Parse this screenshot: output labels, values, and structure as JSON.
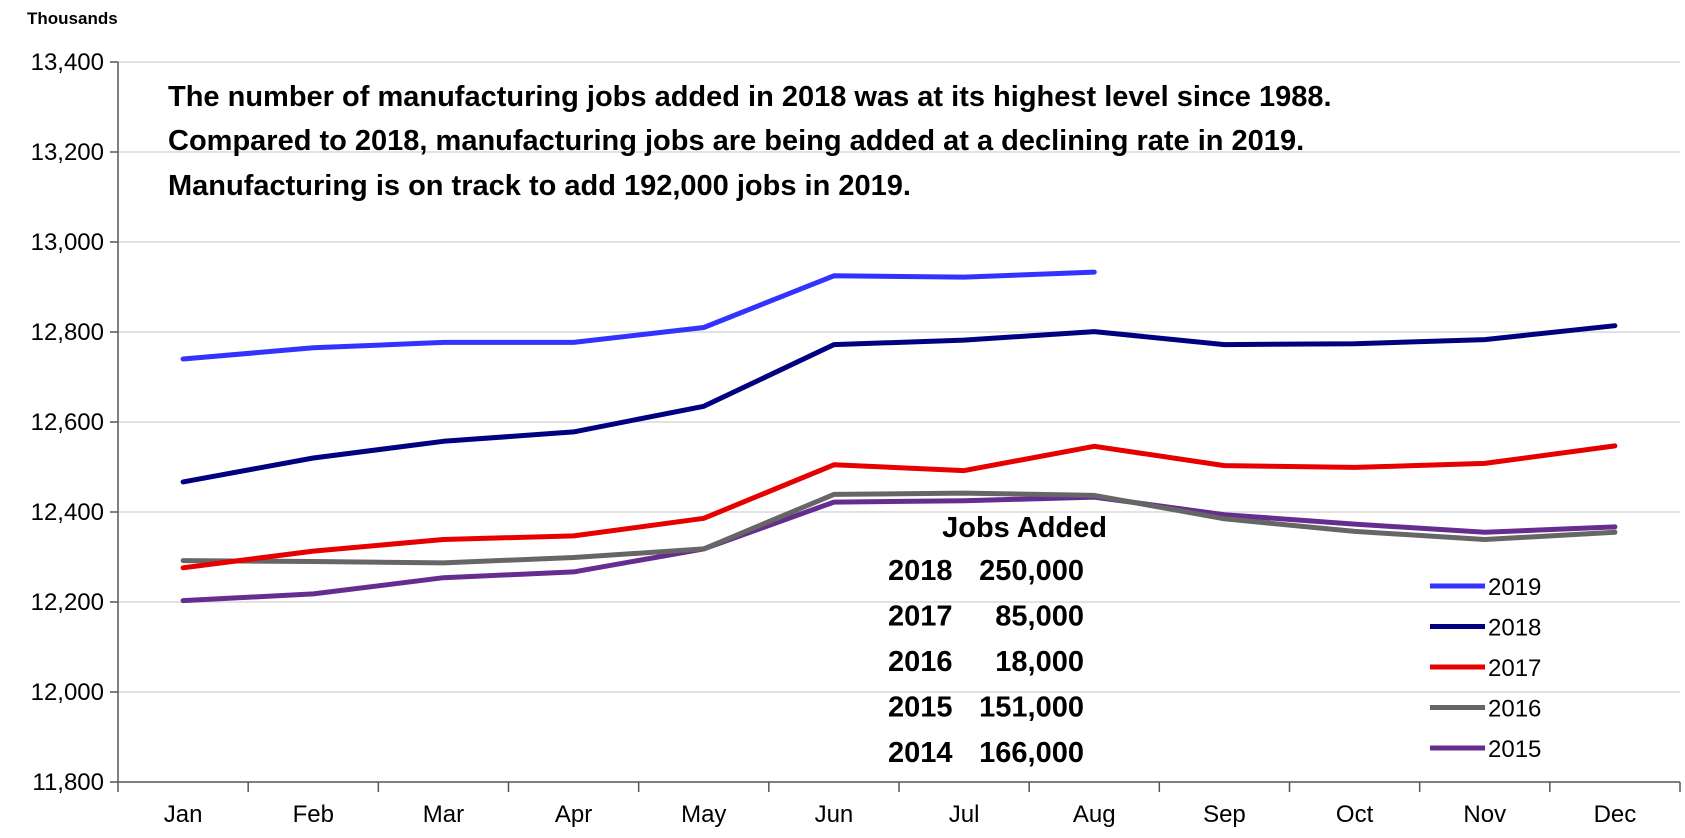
{
  "chart_data": {
    "type": "line",
    "unit_label": "Thousands",
    "categories": [
      "Jan",
      "Feb",
      "Mar",
      "Apr",
      "May",
      "Jun",
      "Jul",
      "Aug",
      "Sep",
      "Oct",
      "Nov",
      "Dec"
    ],
    "ylim": [
      11800,
      13400
    ],
    "yticks": [
      11800,
      12000,
      12200,
      12400,
      12600,
      12800,
      13000,
      13200,
      13400
    ],
    "ytick_labels": [
      "11,800",
      "12,000",
      "12,200",
      "12,400",
      "12,600",
      "12,800",
      "13,000",
      "13,200",
      "13,400"
    ],
    "grid": true,
    "legend_position": "bottom-right",
    "series": [
      {
        "name": "2019",
        "color": "#3333ff",
        "values": [
          12740,
          12765,
          12777,
          12777,
          12810,
          12925,
          12922,
          12933,
          null,
          null,
          null,
          null
        ]
      },
      {
        "name": "2018",
        "color": "#000080",
        "values": [
          12467,
          12520,
          12557,
          12578,
          12635,
          12772,
          12782,
          12801,
          12772,
          12774,
          12783,
          12814
        ]
      },
      {
        "name": "2017",
        "color": "#e60000",
        "values": [
          12276,
          12313,
          12339,
          12347,
          12386,
          12505,
          12492,
          12546,
          12503,
          12499,
          12508,
          12547
        ]
      },
      {
        "name": "2016",
        "color": "#666666",
        "values": [
          12292,
          12290,
          12287,
          12299,
          12318,
          12439,
          12442,
          12437,
          12385,
          12357,
          12339,
          12355
        ]
      },
      {
        "name": "2015",
        "color": "#662d91",
        "values": [
          12203,
          12218,
          12254,
          12267,
          12318,
          12422,
          12425,
          12433,
          12394,
          12373,
          12355,
          12367
        ]
      }
    ],
    "annotation_lines": [
      "The number of manufacturing jobs added in 2018 was at its highest level since 1988.",
      "Compared to 2018, manufacturing jobs are being added at a declining rate in 2019.",
      "Manufacturing is on track to add 192,000 jobs in 2019."
    ],
    "jobs_table": {
      "title": "Jobs Added",
      "rows": [
        {
          "year": "2018",
          "value": "250,000"
        },
        {
          "year": "2017",
          "value": "85,000"
        },
        {
          "year": "2016",
          "value": "18,000"
        },
        {
          "year": "2015",
          "value": "151,000"
        },
        {
          "year": "2014",
          "value": "166,000"
        }
      ]
    }
  }
}
